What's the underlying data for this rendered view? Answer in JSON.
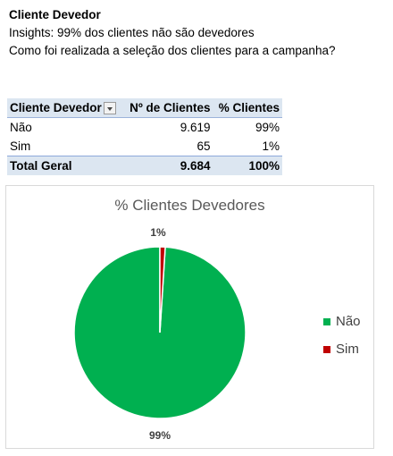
{
  "header": {
    "title": "Cliente Devedor",
    "line1": "Insights: 99% dos clientes não são devedores",
    "line2": "Como foi realizada a seleção dos clientes para a campanha?"
  },
  "pivot": {
    "headers": [
      "Cliente Devedor",
      "Nº de Clientes",
      "% Clientes"
    ],
    "rows": [
      {
        "label": "Não",
        "count": "9.619",
        "pct": "99%"
      },
      {
        "label": "Sim",
        "count": "65",
        "pct": "1%"
      }
    ],
    "total": {
      "label": "Total Geral",
      "count": "9.684",
      "pct": "100%"
    },
    "filter_icon": "dropdown-arrow-icon",
    "header_color": "#dce6f1"
  },
  "chart_data": {
    "type": "pie",
    "title": "% Clientes Devedores",
    "categories": [
      "Não",
      "Sim"
    ],
    "values": [
      99,
      1
    ],
    "data_labels": [
      "99%",
      "1%"
    ],
    "colors": [
      "#00b050",
      "#c00000"
    ],
    "legend_position": "right"
  }
}
